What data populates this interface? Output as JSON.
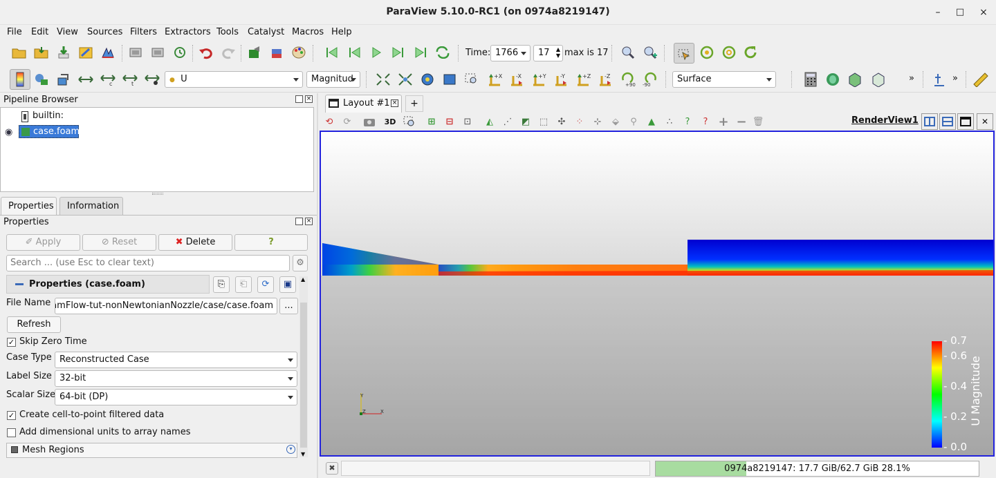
{
  "window": {
    "title": "ParaView 5.10.0-RC1 (on 0974a8219147)",
    "minimize": "–",
    "maximize": "□",
    "close": "×"
  },
  "menu": [
    "File",
    "Edit",
    "View",
    "Sources",
    "Filters",
    "Extractors",
    "Tools",
    "Catalyst",
    "Macros",
    "Help"
  ],
  "time": {
    "label": "Time:",
    "value": "1766",
    "step": "17",
    "max_text": "max is 17"
  },
  "color_by": {
    "array": "U",
    "component": "Magnitud"
  },
  "representation": "Surface",
  "overflow_glyph": "»",
  "pipeline": {
    "title": "Pipeline Browser",
    "items": [
      {
        "name": "builtin:"
      },
      {
        "name": "case.foam",
        "selected": true
      }
    ]
  },
  "tabs": {
    "properties": "Properties",
    "information": "Information"
  },
  "properties": {
    "panel_title": "Properties",
    "apply": "Apply",
    "reset": "Reset",
    "delete": "Delete",
    "help": "?",
    "search_placeholder": "Search ... (use Esc to clear text)",
    "section_title": "Properties (case.foam)",
    "file_name_label": "File Name",
    "file_name_value": "'baramFlow-tut-nonNewtonianNozzle/case/case.foam",
    "browse": "...",
    "refresh": "Refresh",
    "skip_zero_time": "Skip Zero Time",
    "case_type_label": "Case Type",
    "case_type_value": "Reconstructed Case",
    "label_size_label": "Label Size",
    "label_size_value": "32-bit",
    "scalar_size_label": "Scalar Size",
    "scalar_size_value": "64-bit (DP)",
    "create_cell_to_point": "Create cell-to-point filtered data",
    "add_dim_units": "Add dimensional units to array names",
    "mesh_regions": "Mesh Regions"
  },
  "layout": {
    "tab": "Layout #1",
    "add": "+",
    "view_name": "RenderView1",
    "btn_3d": "3D"
  },
  "colorbar": {
    "title": "U Magnitude",
    "ticks": [
      "0.7",
      "0.6",
      "0.4",
      "0.2",
      "0.0"
    ],
    "gradient": [
      "#0000ff",
      "#00ffff",
      "#00ff00",
      "#ffff00",
      "#ff0000"
    ]
  },
  "axes": {
    "y": "Y",
    "z": "Z",
    "x": "X"
  },
  "status": {
    "memory": "0974a8219147: 17.7 GiB/62.7 GiB 28.1%",
    "memory_fraction": 0.281
  }
}
